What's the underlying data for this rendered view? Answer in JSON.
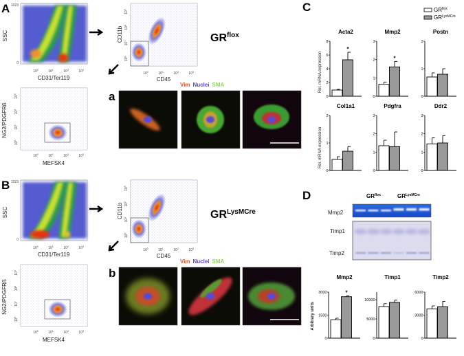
{
  "panels": {
    "A": {
      "label": "A",
      "sub_label": "a",
      "genotype": {
        "base": "GR",
        "sup": "flox"
      },
      "plot1": {
        "xlabel": "CD31/Ter119",
        "ylabel": "SSC",
        "yticks": [
          "0",
          "1023"
        ]
      },
      "plot2": {
        "xlabel": "CD45",
        "ylabel": "CD11b"
      },
      "plot3": {
        "xlabel": "MEFSK4",
        "ylabel": "NG2/PDGFRß"
      }
    },
    "B": {
      "label": "B",
      "sub_label": "b",
      "genotype": {
        "base": "GR",
        "sup": "LysMCre"
      },
      "plot1": {
        "xlabel": "CD31/Ter119",
        "ylabel": "SSC",
        "yticks": [
          "0",
          "1023"
        ]
      },
      "plot2": {
        "xlabel": "CD45",
        "ylabel": "CD11b"
      },
      "plot3": {
        "xlabel": "MEFSK4",
        "ylabel": "NG2/PDGFRß"
      }
    },
    "C": {
      "label": "C",
      "ylabel": "Rel. mRNA expression"
    },
    "D": {
      "label": "D",
      "ylabel": "Arbitrary units",
      "gel_groups": [
        {
          "base": "GR",
          "sup": "flox"
        },
        {
          "base": "GR",
          "sup": "LysMCre"
        }
      ],
      "gel_rows": [
        "Mmp2",
        "Timp1",
        "Timp2"
      ]
    }
  },
  "log_ticks": {
    "e0": "10",
    "s0": "0",
    "s1": "1",
    "s2": "2",
    "s3": "3"
  },
  "stain_legend": {
    "vim": "Vim",
    "nuclei": "Nuclei",
    "sma": "SMA",
    "vim_color": "#e8502a",
    "nuclei_color": "#5a3fd8",
    "sma_color": "#8fd65a"
  },
  "legend": [
    {
      "base": "GR",
      "sup": "flox",
      "color": "#ffffff"
    },
    {
      "base": "GR",
      "sup": "LysMCre",
      "color": "#999999"
    }
  ],
  "chart_data": [
    {
      "type": "bar",
      "panel": "C",
      "title": "Acta2",
      "categories": [
        "GRflox",
        "GRLysMCre"
      ],
      "values": [
        0.9,
        5.3
      ],
      "errors": [
        0.1,
        1.1
      ],
      "ylim": [
        0,
        8
      ],
      "yticks": [
        0,
        2,
        4,
        6,
        8
      ],
      "significant": [
        false,
        true
      ],
      "ylabel": "Rel. mRNA expression"
    },
    {
      "type": "bar",
      "panel": "C",
      "title": "Mmp2",
      "categories": [
        "GRflox",
        "GRLysMCre"
      ],
      "values": [
        0.65,
        1.6
      ],
      "errors": [
        0.12,
        0.3
      ],
      "ylim": [
        0,
        3
      ],
      "yticks": [
        0,
        1,
        2,
        3
      ],
      "significant": [
        false,
        true
      ]
    },
    {
      "type": "bar",
      "panel": "C",
      "title": "Postn",
      "categories": [
        "GRflox",
        "GRLysMCre"
      ],
      "values": [
        0.7,
        0.8
      ],
      "errors": [
        0.15,
        0.2
      ],
      "ylim": [
        0,
        2
      ],
      "yticks": [
        0,
        1,
        2
      ],
      "significant": [
        false,
        false
      ]
    },
    {
      "type": "bar",
      "panel": "C",
      "title": "Col1a1",
      "categories": [
        "GRflox",
        "GRLysMCre"
      ],
      "values": [
        0.4,
        0.7
      ],
      "errors": [
        0.1,
        0.17
      ],
      "ylim": [
        0,
        2
      ],
      "yticks": [
        0,
        1,
        2
      ],
      "significant": [
        false,
        false
      ],
      "ylabel": "Rel. mRNA expression"
    },
    {
      "type": "bar",
      "panel": "C",
      "title": "Pdgfra",
      "categories": [
        "GRflox",
        "GRLysMCre"
      ],
      "values": [
        1.35,
        1.3
      ],
      "errors": [
        0.3,
        0.8
      ],
      "ylim": [
        0,
        3
      ],
      "yticks": [
        0,
        1,
        2,
        3
      ],
      "significant": [
        false,
        false
      ]
    },
    {
      "type": "bar",
      "panel": "C",
      "title": "Ddr2",
      "categories": [
        "GRflox",
        "GRLysMCre"
      ],
      "values": [
        1.45,
        1.5
      ],
      "errors": [
        0.33,
        0.4
      ],
      "ylim": [
        0,
        3
      ],
      "yticks": [
        0,
        1,
        2,
        3
      ],
      "significant": [
        false,
        false
      ]
    },
    {
      "type": "bar",
      "panel": "D",
      "title": "Mmp2",
      "categories": [
        "GRflox",
        "GRLysMCre"
      ],
      "values": [
        1200,
        2700
      ],
      "errors": [
        100,
        50
      ],
      "ylim": [
        0,
        3000
      ],
      "yticks": [
        0,
        1500,
        3000
      ],
      "significant": [
        false,
        true
      ],
      "ylabel": "Arbitrary units"
    },
    {
      "type": "bar",
      "panel": "D",
      "title": "Timp1",
      "categories": [
        "GRflox",
        "GRLysMCre"
      ],
      "values": [
        8200,
        9300
      ],
      "errors": [
        800,
        600
      ],
      "ylim": [
        0,
        12000
      ],
      "yticks": [
        0,
        5000,
        10000
      ],
      "significant": [
        false,
        false
      ]
    },
    {
      "type": "bar",
      "panel": "D",
      "title": "Timp2",
      "categories": [
        "GRflox",
        "GRLysMCre"
      ],
      "values": [
        3800,
        4100
      ],
      "errors": [
        400,
        700
      ],
      "ylim": [
        0,
        6000
      ],
      "yticks": [
        0,
        3000,
        6000
      ],
      "significant": [
        false,
        false
      ]
    }
  ],
  "significance_marker": "*"
}
